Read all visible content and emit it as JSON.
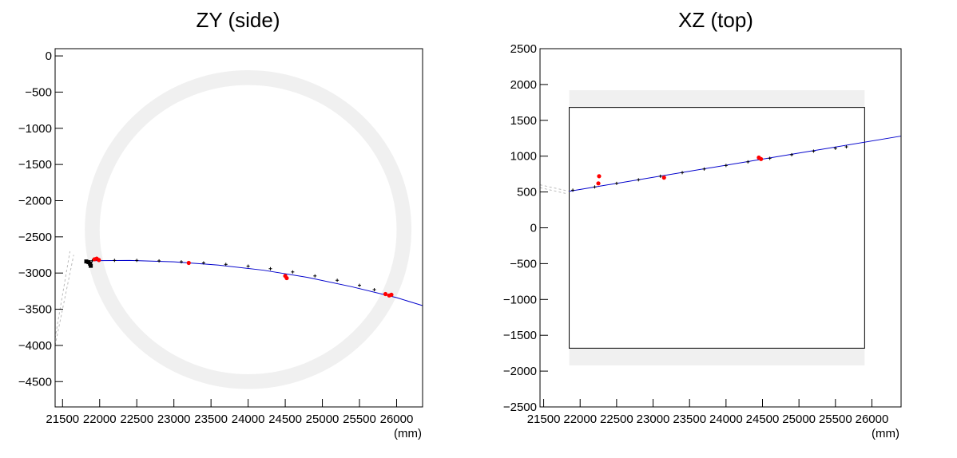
{
  "colors": {
    "detector": "#f0f0f0",
    "track_fit": "#0000cc",
    "hits": "#000000",
    "deposits": "#ff0000",
    "frame": "#000000"
  },
  "chart_data": [
    {
      "type": "scatter",
      "title": "ZY (side)",
      "xlabel": "(mm)",
      "ylabel": "",
      "xlim": [
        21400,
        26350
      ],
      "ylim": [
        -4850,
        100
      ],
      "xticks": [
        21500,
        22000,
        22500,
        23000,
        23500,
        24000,
        24500,
        25000,
        25500,
        26000
      ],
      "xtick_labels": [
        "21500",
        "22000",
        "22500",
        "23000",
        "23500",
        "24000",
        "24500",
        "25000",
        "25500",
        "26000"
      ],
      "yticks": [
        0,
        -500,
        -1000,
        -1500,
        -2000,
        -2500,
        -3000,
        -3500,
        -4000,
        -4500
      ],
      "ytick_labels": [
        "0",
        "−500",
        "−1000",
        "−1500",
        "−2000",
        "−2500",
        "−3000",
        "−3500",
        "−4000",
        "−4500"
      ],
      "detector_ring": {
        "center": [
          24000,
          -2400
        ],
        "radius": 2100,
        "thickness": 200
      },
      "track_fit": {
        "x": [
          21900,
          22400,
          23000,
          23600,
          24200,
          24800,
          25400,
          26000,
          26350
        ],
        "y": [
          -2830,
          -2825,
          -2845,
          -2890,
          -2960,
          -3060,
          -3190,
          -3340,
          -3450
        ]
      },
      "hits": {
        "x": [
          21900,
          22200,
          22500,
          22800,
          23100,
          23400,
          23700,
          24000,
          24300,
          24600,
          24900,
          25200,
          25500,
          25700
        ],
        "y": [
          -2830,
          -2825,
          -2825,
          -2832,
          -2845,
          -2860,
          -2880,
          -2905,
          -2940,
          -2985,
          -3040,
          -3100,
          -3170,
          -3230
        ]
      },
      "deposits": {
        "x": [
          21930,
          21960,
          21990,
          23200,
          24500,
          24520,
          25850,
          25900,
          25930
        ],
        "y": [
          -2810,
          -2800,
          -2820,
          -2860,
          -3040,
          -3070,
          -3290,
          -3310,
          -3300
        ]
      },
      "dark_cluster": {
        "x": [
          21820,
          21850,
          21870,
          21880
        ],
        "y": [
          -2840,
          -2850,
          -2870,
          -2900
        ]
      },
      "dashed_lines": [
        {
          "x": [
            21400,
            21600
          ],
          "y": [
            -3900,
            -2700
          ]
        },
        {
          "x": [
            21400,
            21650
          ],
          "y": [
            -4000,
            -2750
          ]
        }
      ]
    },
    {
      "type": "scatter",
      "title": "XZ (top)",
      "xlabel": "(mm)",
      "ylabel": "",
      "xlim": [
        21450,
        26400
      ],
      "ylim": [
        -2500,
        2500
      ],
      "xticks": [
        21500,
        22000,
        22500,
        23000,
        23500,
        24000,
        24500,
        25000,
        25500,
        26000
      ],
      "xtick_labels": [
        "21500",
        "22000",
        "22500",
        "23000",
        "23500",
        "24000",
        "24500",
        "25000",
        "25500",
        "26000"
      ],
      "yticks": [
        2500,
        2000,
        1500,
        1000,
        500,
        0,
        -500,
        -1000,
        -1500,
        -2000,
        -2500
      ],
      "ytick_labels": [
        "2500",
        "2000",
        "1500",
        "1000",
        "500",
        "0",
        "−500",
        "−1000",
        "−1500",
        "−2000",
        "−2500"
      ],
      "detector_bands": [
        {
          "x": [
            21850,
            25900
          ],
          "y": [
            1680,
            1920
          ]
        },
        {
          "x": [
            21850,
            25900
          ],
          "y": [
            -1920,
            -1680
          ]
        }
      ],
      "detector_box": {
        "x": [
          21850,
          25900
        ],
        "y": [
          -1680,
          1680
        ]
      },
      "track_fit": {
        "x": [
          21850,
          26400
        ],
        "y": [
          510,
          1280
        ]
      },
      "hits": {
        "x": [
          21900,
          22200,
          22500,
          22800,
          23100,
          23400,
          23700,
          24000,
          24300,
          24600,
          24900,
          25200,
          25500,
          25650
        ],
        "y": [
          525,
          570,
          620,
          670,
          720,
          770,
          820,
          870,
          920,
          970,
          1020,
          1070,
          1110,
          1130
        ]
      },
      "deposits": {
        "x": [
          22250,
          22260,
          23150,
          24450,
          24480
        ],
        "y": [
          620,
          720,
          700,
          980,
          960
        ]
      },
      "dashed_lines": [
        {
          "x": [
            21450,
            21850
          ],
          "y": [
            600,
            510
          ]
        },
        {
          "x": [
            21450,
            21800
          ],
          "y": [
            560,
            480
          ]
        }
      ]
    }
  ]
}
